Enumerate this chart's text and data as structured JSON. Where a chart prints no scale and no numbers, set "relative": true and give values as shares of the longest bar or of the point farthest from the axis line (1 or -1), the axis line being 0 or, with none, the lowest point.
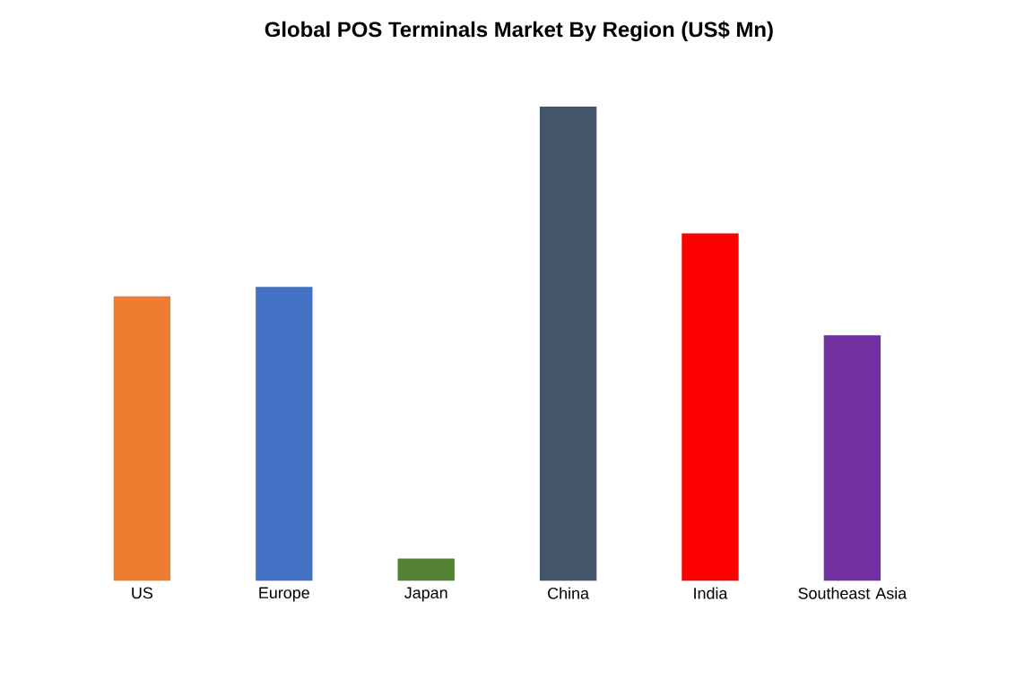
{
  "chart_data": {
    "type": "bar",
    "title": "Global POS Terminals Market By Region (US$ Mn)",
    "relative": true,
    "categories": [
      "US",
      "Europe",
      "Japan",
      "China",
      "India",
      "Southeast Asia"
    ],
    "values": [
      0.6,
      0.62,
      0.047,
      1,
      0.733,
      0.518
    ],
    "colors": [
      "#ed7d31",
      "#4472c4",
      "#548235",
      "#44546a",
      "#ff0000",
      "#7030a0"
    ]
  }
}
